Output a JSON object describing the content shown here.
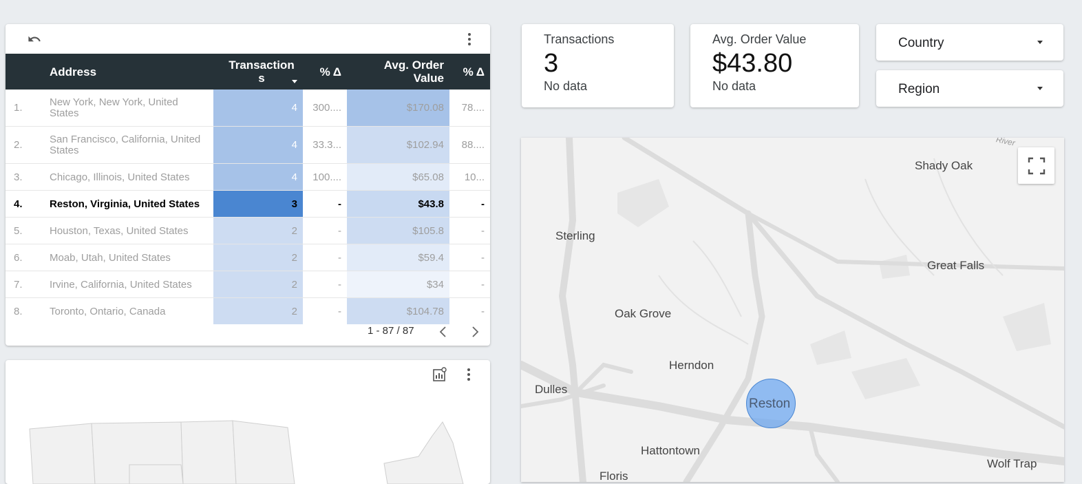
{
  "table": {
    "headers": {
      "address": "Address",
      "transactions": "Transaction s",
      "delta1": "% Δ",
      "aov": "Avg. Order Value",
      "delta2": "% Δ"
    },
    "sort_icon": "sort-descending-icon",
    "rows": [
      {
        "rank": "1.",
        "address": "New York, New York, United States",
        "transactions": "4",
        "delta1": "300....",
        "aov": "$170.08",
        "delta2": "78...."
      },
      {
        "rank": "2.",
        "address": "San Francisco, California, United States",
        "transactions": "4",
        "delta1": "33.3...",
        "aov": "$102.94",
        "delta2": "88...."
      },
      {
        "rank": "3.",
        "address": "Chicago, Illinois, United States",
        "transactions": "4",
        "delta1": "100....",
        "aov": "$65.08",
        "delta2": "10..."
      },
      {
        "rank": "4.",
        "address": "Reston, Virginia, United States",
        "transactions": "3",
        "delta1": "-",
        "aov": "$43.8",
        "delta2": "-"
      },
      {
        "rank": "5.",
        "address": "Houston, Texas, United States",
        "transactions": "2",
        "delta1": "-",
        "aov": "$105.8",
        "delta2": "-"
      },
      {
        "rank": "6.",
        "address": "Moab, Utah, United States",
        "transactions": "2",
        "delta1": "-",
        "aov": "$59.4",
        "delta2": "-"
      },
      {
        "rank": "7.",
        "address": "Irvine, California, United States",
        "transactions": "2",
        "delta1": "-",
        "aov": "$34",
        "delta2": "-"
      },
      {
        "rank": "8.",
        "address": "Toronto, Ontario, Canada",
        "transactions": "2",
        "delta1": "-",
        "aov": "$104.78",
        "delta2": "-"
      }
    ],
    "pagination": "1 - 87 / 87",
    "colors": {
      "header_bg": "#263238",
      "trans_high": "#a6c2e8",
      "trans_selected": "#4a86d1",
      "trans_low": "#cddcf2"
    }
  },
  "scorecards": [
    {
      "label": "Transactions",
      "value": "3",
      "comparison": "No data"
    },
    {
      "label": "Avg. Order Value",
      "value": "$43.80",
      "comparison": "No data"
    }
  ],
  "filters": [
    {
      "label": "Country"
    },
    {
      "label": "Region"
    }
  ],
  "map": {
    "places": [
      "Shady Oak",
      "Sterling",
      "Great Falls",
      "Oak Grove",
      "Herndon",
      "Dulles",
      "Reston",
      "Hattontown",
      "Wolf Trap",
      "Floris",
      "River"
    ],
    "bubble_color": "#6fa8f0",
    "fullscreen_icon": "fullscreen-icon"
  },
  "icons": {
    "undo": "undo-icon",
    "more": "more-vert-icon",
    "explore": "chart-explore-icon",
    "prev": "chevron-left-icon",
    "next": "chevron-right-icon"
  }
}
